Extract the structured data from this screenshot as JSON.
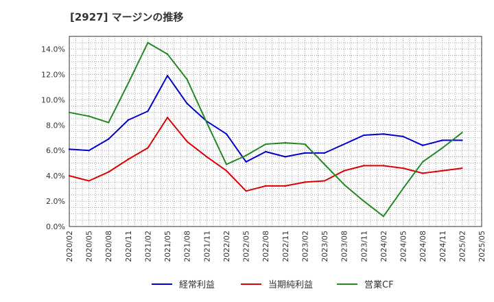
{
  "chart_data": {
    "type": "line",
    "title": "[2927]  マージンの推移",
    "x": [
      "2020/02",
      "2020/05",
      "2020/08",
      "2020/11",
      "2021/02",
      "2021/05",
      "2021/08",
      "2021/11",
      "2022/02",
      "2022/05",
      "2022/08",
      "2022/11",
      "2023/02",
      "2023/05",
      "2023/08",
      "2023/11",
      "2024/02",
      "2024/05",
      "2024/08",
      "2024/11",
      "2025/02"
    ],
    "x_tick_labels": [
      "2020/02",
      "2020/05",
      "2020/08",
      "2020/11",
      "2021/02",
      "2021/05",
      "2021/08",
      "2021/11",
      "2022/02",
      "2022/05",
      "2022/08",
      "2022/11",
      "2023/02",
      "2023/05",
      "2023/08",
      "2023/11",
      "2024/02",
      "2024/05",
      "2024/08",
      "2024/11",
      "2025/02",
      "2025/05"
    ],
    "y_tick_labels": [
      "0.0%",
      "2.0%",
      "4.0%",
      "6.0%",
      "8.0%",
      "10.0%",
      "12.0%",
      "14.0%"
    ],
    "ylim": [
      0,
      15
    ],
    "y_unit": "%",
    "grid": true,
    "legend_position": "bottom",
    "series": [
      {
        "name": "経常利益",
        "color": "#0000cc",
        "values": [
          6.1,
          6.0,
          6.9,
          8.4,
          9.1,
          11.9,
          9.7,
          8.3,
          7.3,
          5.1,
          5.9,
          5.5,
          5.8,
          5.8,
          6.5,
          7.2,
          7.3,
          7.1,
          6.4,
          6.8,
          6.8
        ]
      },
      {
        "name": "当期純利益",
        "color": "#dd0000",
        "values": [
          4.0,
          3.6,
          4.3,
          5.3,
          6.2,
          8.6,
          6.7,
          5.5,
          4.4,
          2.8,
          3.2,
          3.2,
          3.5,
          3.6,
          4.4,
          4.8,
          4.8,
          4.6,
          4.2,
          4.4,
          4.6
        ]
      },
      {
        "name": "営業CF",
        "color": "#228822",
        "values": [
          9.0,
          8.7,
          8.2,
          11.3,
          14.5,
          13.6,
          11.6,
          8.2,
          4.9,
          5.6,
          6.5,
          6.6,
          6.5,
          4.9,
          3.3,
          2.0,
          0.8,
          3.0,
          5.1,
          6.2,
          7.4
        ]
      }
    ]
  }
}
